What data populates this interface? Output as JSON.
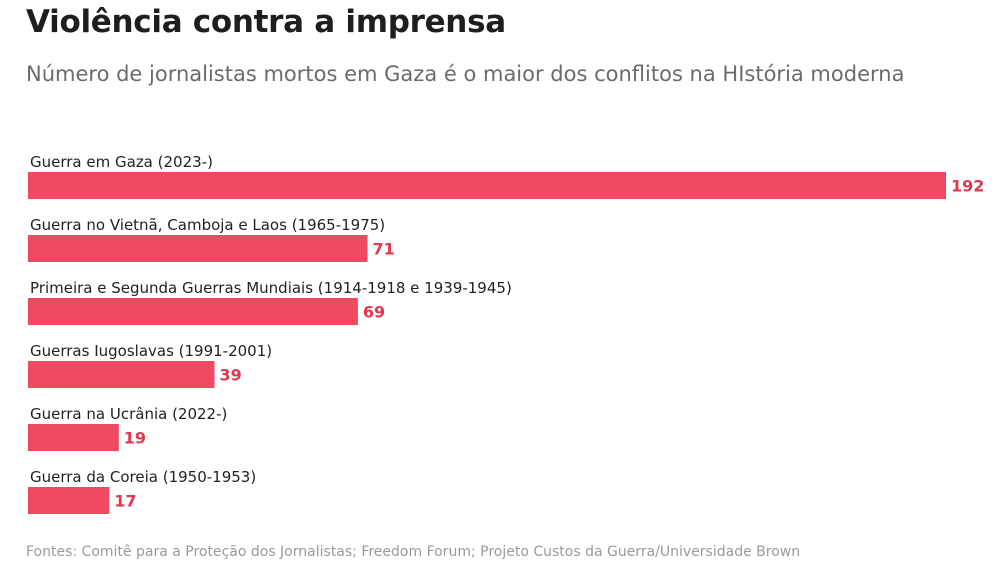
{
  "header": {
    "title": "Violência contra a imprensa",
    "subtitle": "Número de jornalistas mortos em Gaza é o maior dos conflitos na HIstória moderna"
  },
  "footer": {
    "source": "Fontes: Comitê para a Proteção dos Jornalistas; Freedom Forum; Projeto Custos da Guerra/Universidade Brown"
  },
  "colors": {
    "bar": "#f04a62",
    "value_label": "#e2384f",
    "category_label": "#222222"
  },
  "chart_data": {
    "type": "bar",
    "orientation": "horizontal",
    "title": "Violência contra a imprensa",
    "subtitle": "Número de jornalistas mortos em Gaza é o maior dos conflitos na HIstória moderna",
    "categories": [
      "Guerra em Gaza (2023-)",
      "Guerra no Vietnã, Camboja e Laos (1965-1975)",
      "Primeira e Segunda Guerras Mundiais (1914-1918 e 1939-1945)",
      "Guerras Iugoslavas (1991-2001)",
      "Guerra na Ucrânia (2022-)",
      "Guerra da Coreia (1950-1953)"
    ],
    "values": [
      192,
      71,
      69,
      39,
      19,
      17
    ],
    "xlim": [
      0,
      192
    ],
    "grid": false,
    "legend": "none",
    "data_labels": true
  }
}
